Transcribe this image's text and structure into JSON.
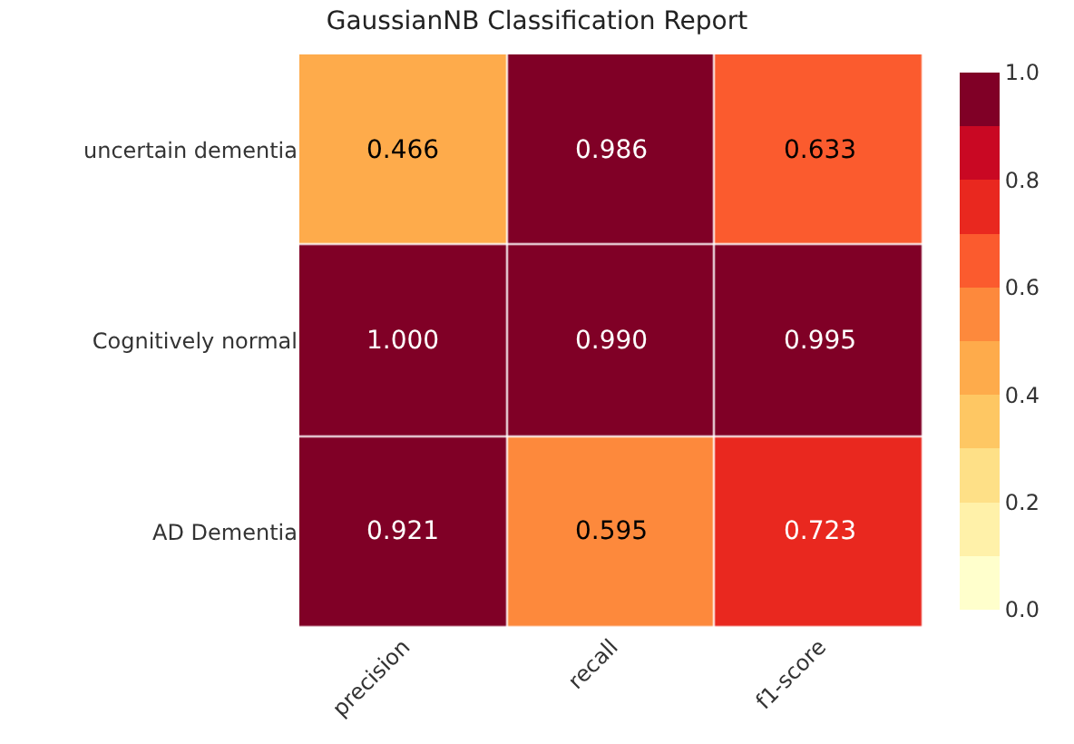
{
  "chart_data": {
    "type": "heatmap",
    "title": "GaussianNB Classification Report",
    "categories": [
      "precision",
      "recall",
      "f1-score"
    ],
    "y_categories": [
      "uncertain dementia",
      "Cognitively normal",
      "AD Dementia"
    ],
    "cells": [
      [
        0.466,
        0.986,
        0.633
      ],
      [
        1.0,
        0.99,
        0.995
      ],
      [
        0.921,
        0.595,
        0.723
      ]
    ],
    "cell_labels": [
      [
        "0.466",
        "0.986",
        "0.633"
      ],
      [
        "1.000",
        "0.990",
        "0.995"
      ],
      [
        "0.921",
        "0.595",
        "0.723"
      ]
    ],
    "clim": [
      0,
      1
    ],
    "cticks": [
      {
        "value": 0,
        "label": "0.0"
      },
      {
        "value": 0.2,
        "label": "0.2"
      },
      {
        "value": 0.4,
        "label": "0.4"
      },
      {
        "value": 0.6,
        "label": "0.6"
      },
      {
        "value": 0.8,
        "label": "0.8"
      },
      {
        "value": 1,
        "label": "1.0"
      }
    ],
    "colors": [
      "#ffffcc",
      "#fff1a9",
      "#fee087",
      "#fec763",
      "#feab4b",
      "#fd893c",
      "#fb5b2e",
      "#e9281f",
      "#c90823",
      "#800026"
    ]
  }
}
